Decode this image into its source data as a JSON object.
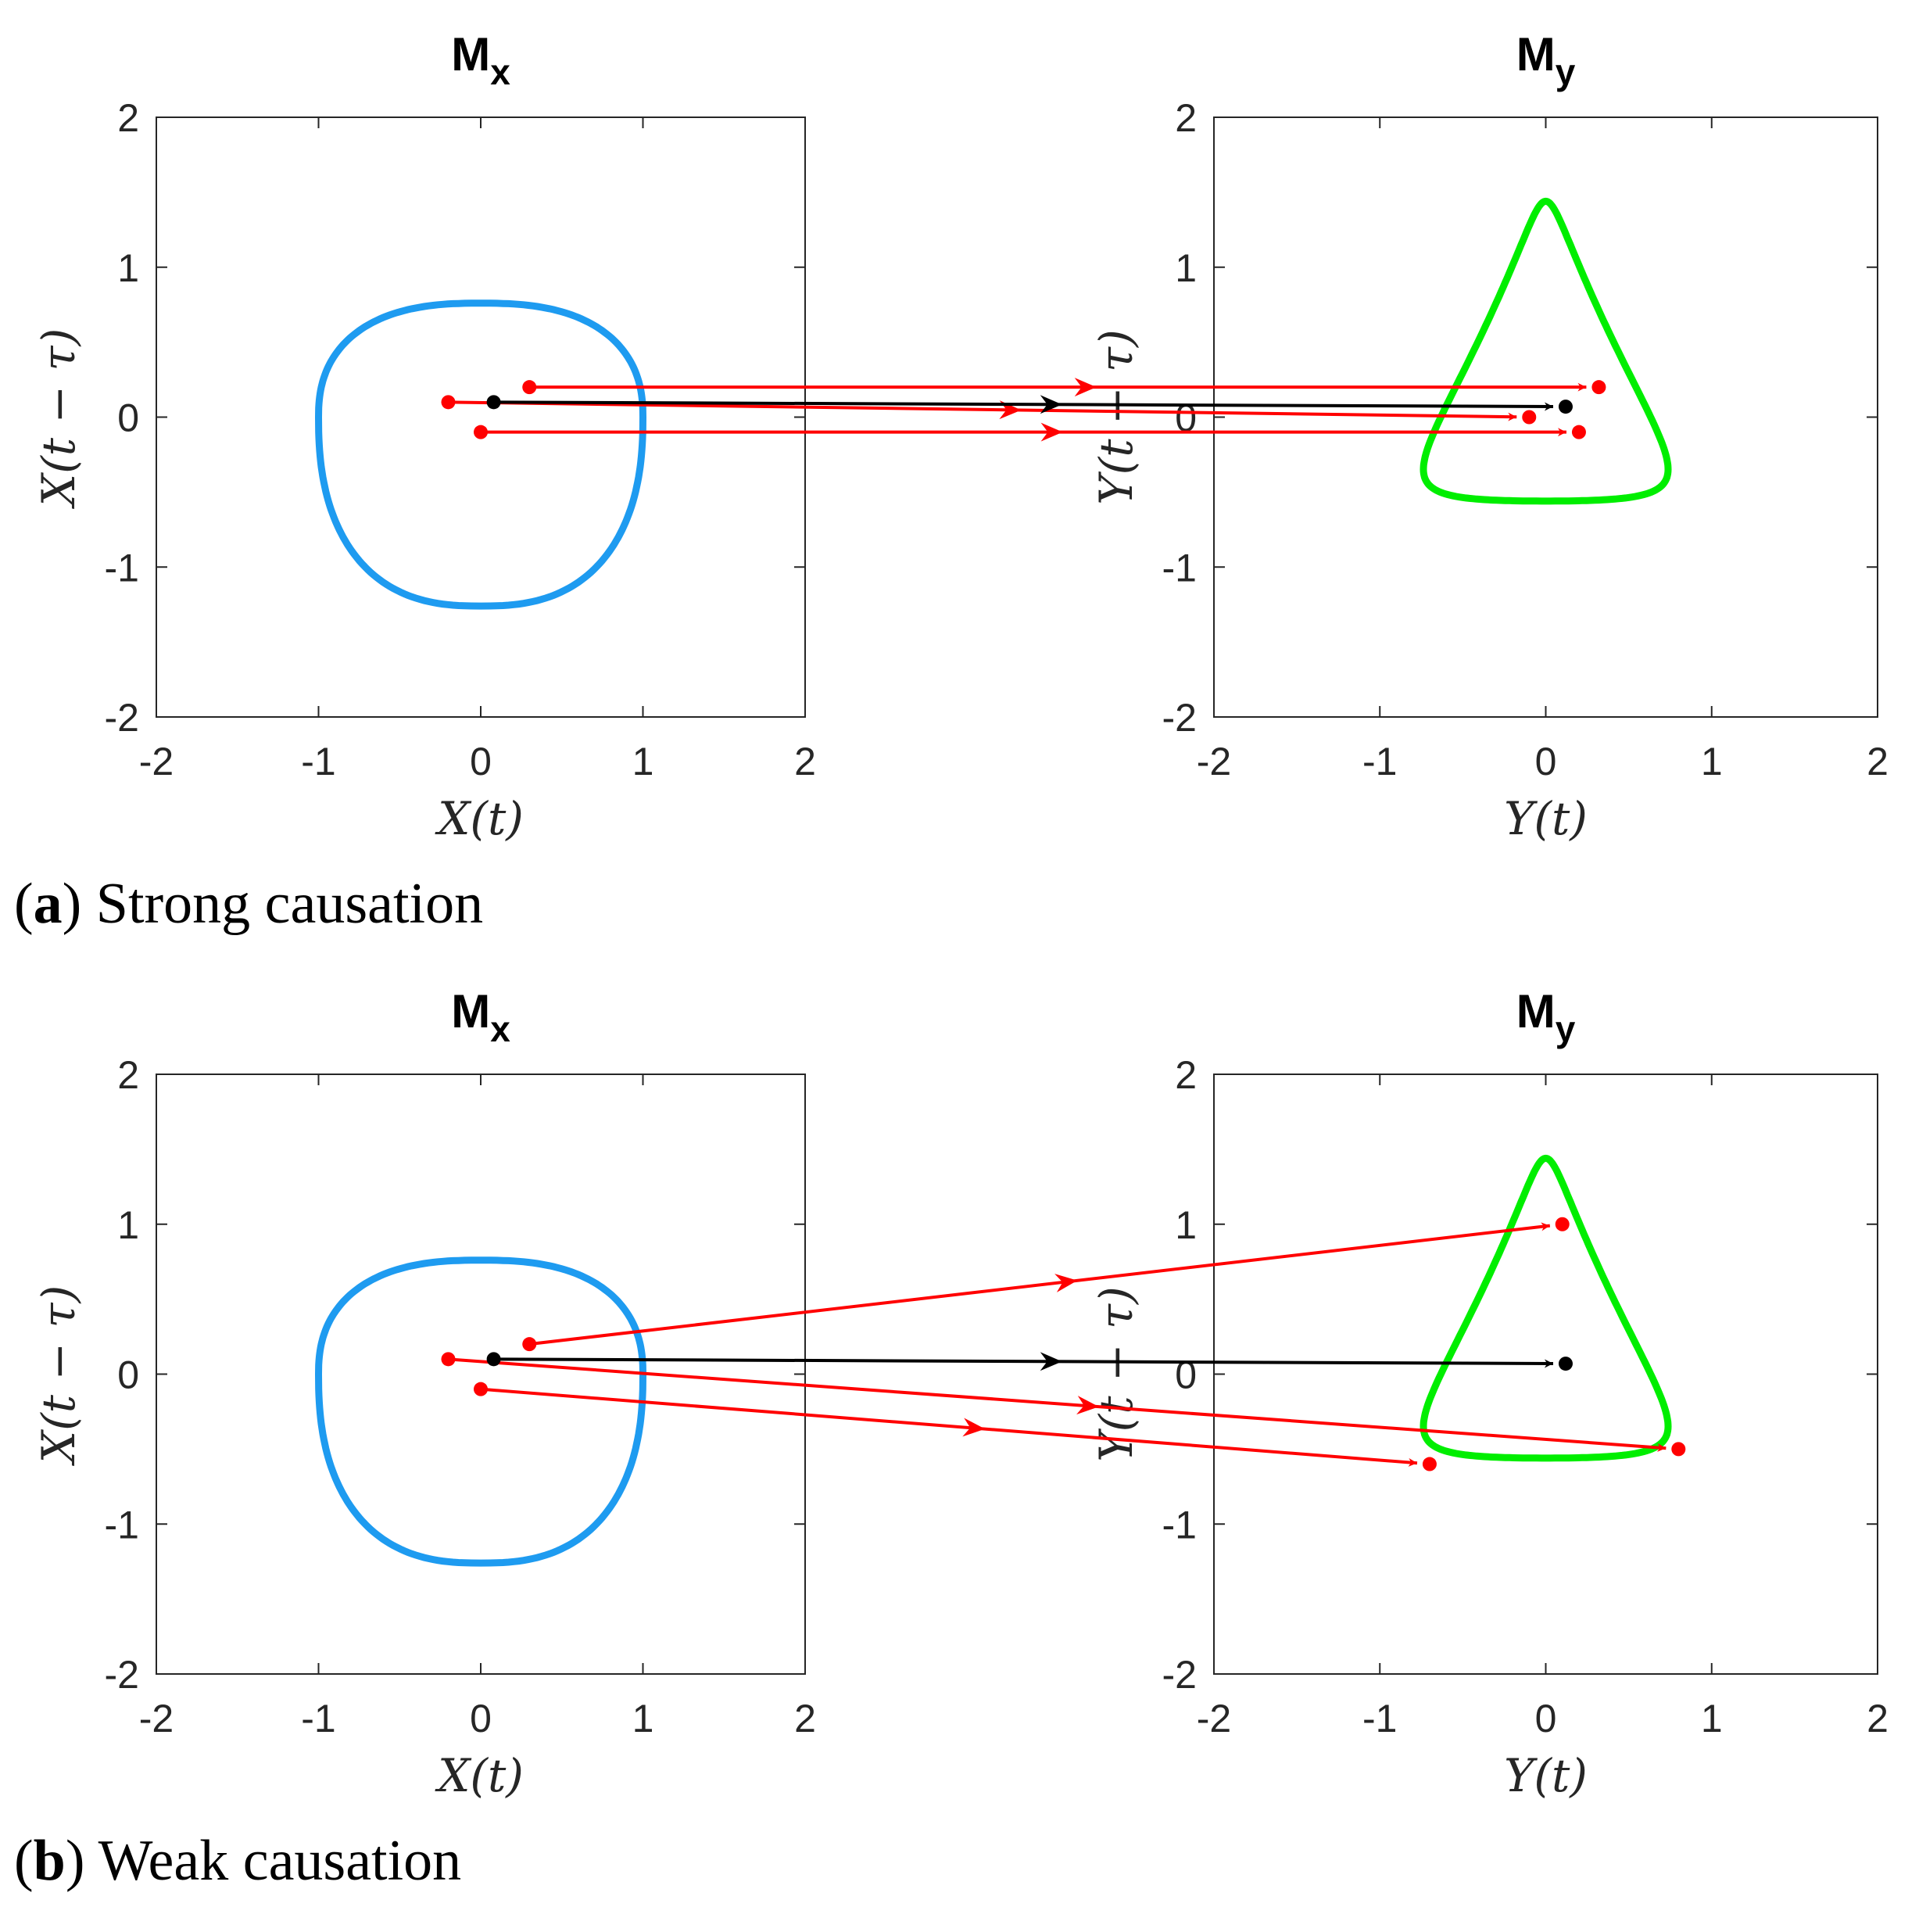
{
  "colors": {
    "curve_x": "#1E9BF0",
    "curve_y": "#00EE00",
    "arrow_red": "#FF0000",
    "arrow_black": "#000000",
    "axis": "#262626"
  },
  "chart_data": [
    {
      "type": "line",
      "panel": "a",
      "caption_label": "a",
      "caption_text": " Strong causation",
      "xlim": [
        -2,
        2
      ],
      "ylim": [
        -2,
        2
      ],
      "xticks": [
        "-2",
        "-1",
        "0",
        "1",
        "2"
      ],
      "yticks": [
        "-2",
        "-1",
        "0",
        "1",
        "2"
      ],
      "left_title": "M",
      "left_title_sub": "x",
      "left_xlabel": "X(t)",
      "left_ylabel": "X(t − τ)",
      "right_title": "M",
      "right_title_sub": "y",
      "right_xlabel": "Y(t)",
      "right_ylabel": "Y(t − τ)",
      "source_points": [
        [
          0.3,
          0.2
        ],
        [
          -0.2,
          0.1
        ],
        [
          0.0,
          -0.1
        ]
      ],
      "target_points": [
        [
          0.32,
          0.2
        ],
        [
          -0.1,
          0.0
        ],
        [
          0.2,
          -0.1
        ]
      ],
      "query_source": [
        0.08,
        0.1
      ],
      "query_target": [
        0.12,
        0.07
      ]
    },
    {
      "type": "line",
      "panel": "b",
      "caption_label": "b",
      "caption_text": " Weak causation",
      "xlim": [
        -2,
        2
      ],
      "ylim": [
        -2,
        2
      ],
      "xticks": [
        "-2",
        "-1",
        "0",
        "1",
        "2"
      ],
      "yticks": [
        "-2",
        "-1",
        "0",
        "1",
        "2"
      ],
      "left_title": "M",
      "left_title_sub": "x",
      "left_xlabel": "X(t)",
      "left_ylabel": "X(t − τ)",
      "right_title": "M",
      "right_title_sub": "y",
      "right_xlabel": "Y(t)",
      "right_ylabel": "Y(t − τ)",
      "source_points": [
        [
          0.3,
          0.2
        ],
        [
          -0.2,
          0.1
        ],
        [
          0.0,
          -0.1
        ]
      ],
      "target_points": [
        [
          0.1,
          1.0
        ],
        [
          0.8,
          -0.5
        ],
        [
          -0.7,
          -0.6
        ]
      ],
      "query_source": [
        0.08,
        0.1
      ],
      "query_target": [
        0.12,
        0.07
      ]
    }
  ]
}
